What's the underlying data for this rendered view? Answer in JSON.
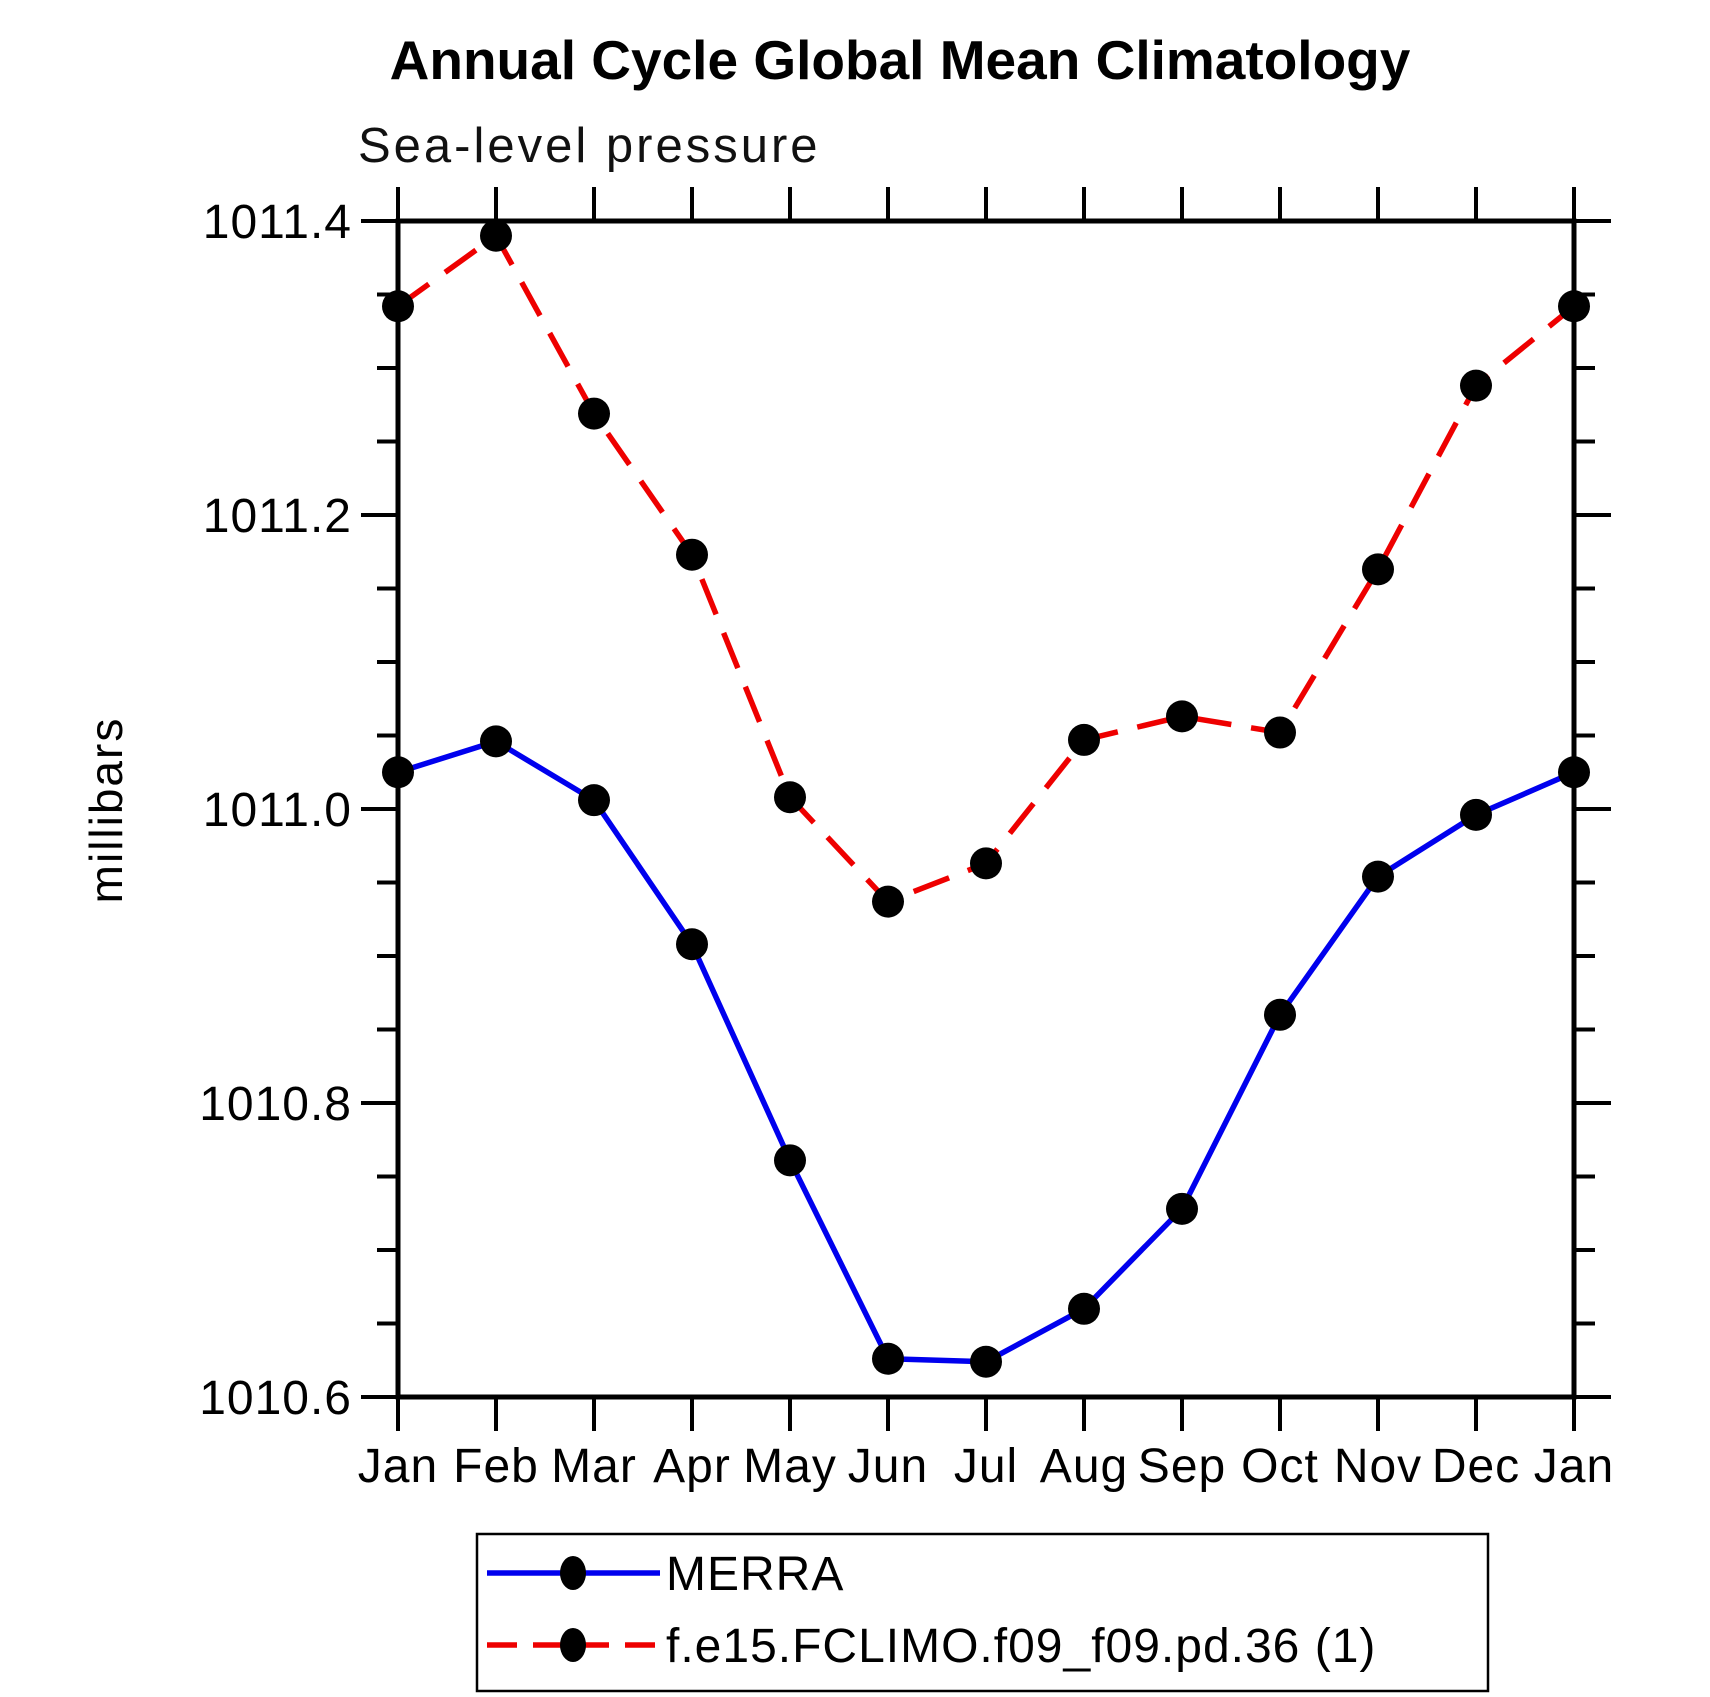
{
  "chart_data": {
    "type": "line",
    "title": "Annual Cycle Global Mean Climatology",
    "subtitle": "Sea-level pressure",
    "ylabel": "millibars",
    "categories": [
      "Jan",
      "Feb",
      "Mar",
      "Apr",
      "May",
      "Jun",
      "Jul",
      "Aug",
      "Sep",
      "Oct",
      "Nov",
      "Dec",
      "Jan"
    ],
    "ylim": [
      1010.6,
      1011.4
    ],
    "ytick_major_step": 0.2,
    "ytick_minor_step": 0.05,
    "ytick_labels": [
      "1010.6",
      "1010.8",
      "1011.0",
      "1011.2",
      "1011.4"
    ],
    "grid": false,
    "legend_position": "bottom",
    "series": [
      {
        "name": "MERRA",
        "color": "#0000ee",
        "style": "solid",
        "marker": "circle",
        "marker_color": "#000000",
        "values": [
          1011.025,
          1011.046,
          1011.006,
          1010.908,
          1010.761,
          1010.626,
          1010.624,
          1010.66,
          1010.728,
          1010.86,
          1010.954,
          1010.996,
          1011.025
        ]
      },
      {
        "name": "f.e15.FCLIMO.f09_f09.pd.36 (1)",
        "color": "#ee0000",
        "style": "dashed",
        "marker": "circle",
        "marker_color": "#000000",
        "values": [
          1011.342,
          1011.39,
          1011.269,
          1011.173,
          1011.008,
          1010.937,
          1010.963,
          1011.047,
          1011.063,
          1011.052,
          1011.163,
          1011.288,
          1011.342
        ]
      }
    ]
  }
}
